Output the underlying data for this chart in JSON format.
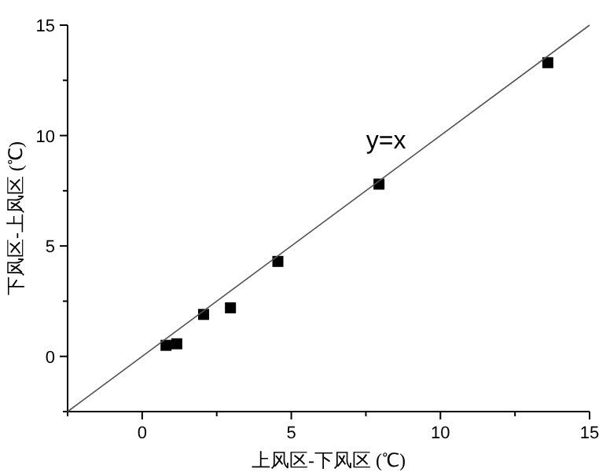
{
  "chart_data": {
    "type": "scatter",
    "xlabel": "上风区-下风区 (℃)",
    "ylabel": "下风区-上风区 (℃)",
    "xlim": [
      -2.5,
      15
    ],
    "ylim": [
      -2.5,
      15
    ],
    "xticks": [
      {
        "value": -2.5,
        "label": null
      },
      0,
      {
        "value": 2.5,
        "label": null
      },
      5,
      {
        "value": 7.5,
        "label": null
      },
      10,
      {
        "value": 12.5,
        "label": null
      },
      15
    ],
    "yticks": [
      {
        "value": -2.5,
        "label": null
      },
      0,
      {
        "value": 2.5,
        "label": null
      },
      5,
      {
        "value": 7.5,
        "label": null
      },
      10,
      {
        "value": 12.5,
        "label": null
      },
      15
    ],
    "grid": false,
    "annotations": [
      "y=x"
    ],
    "series": [
      {
        "color": "#000000",
        "marker": "square",
        "x": [
          0.8,
          1.16,
          2.06,
          2.96,
          4.55,
          7.94,
          13.6
        ],
        "values": [
          0.5,
          0.57,
          1.9,
          2.2,
          4.3,
          7.8,
          13.3
        ]
      },
      {
        "type": "line",
        "color": "#555555",
        "x": [
          -2.5,
          15
        ],
        "values": [
          -2.5,
          15
        ]
      }
    ]
  }
}
